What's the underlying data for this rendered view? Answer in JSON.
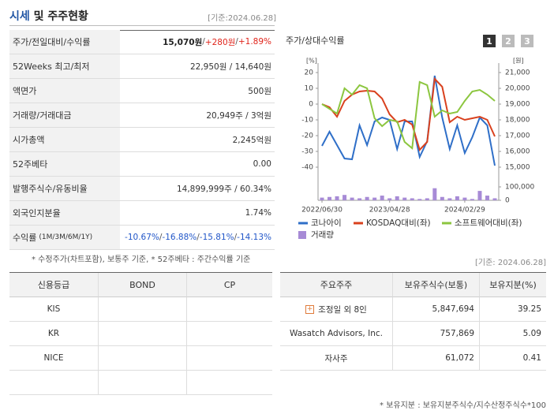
{
  "header": {
    "title_main": "시세",
    "title_rest": "및 주주현황",
    "date": "[기준:2024.06.28]"
  },
  "summary": {
    "rows": [
      {
        "label": "주가/전일대비/수익률",
        "value": [
          "15,070원",
          " / ",
          "+280원",
          " / ",
          "+1.89%"
        ]
      },
      {
        "label": "52Weeks 최고/최저",
        "value": [
          "22,950원 / 14,640원"
        ]
      },
      {
        "label": "액면가",
        "value": [
          "500원"
        ]
      },
      {
        "label": "거래량/거래대금",
        "value": [
          "20,949주 / 3억원"
        ]
      },
      {
        "label": "시가총액",
        "value": [
          "2,245억원"
        ]
      },
      {
        "label": "52주베타",
        "value": [
          "0.00"
        ]
      },
      {
        "label": "발행주식수/유동비율",
        "value": [
          "14,899,999주 / 60.34%"
        ]
      },
      {
        "label": "외국인지분율",
        "value": [
          "1.74%"
        ]
      },
      {
        "label": "수익률",
        "sublabel": "(1M/3M/6M/1Y)",
        "value": [
          "-10.67%",
          " / ",
          "-16.88%",
          " / ",
          "-15.81%",
          " / ",
          "-14.13%"
        ]
      }
    ]
  },
  "note": "* 수정주가(차트포함), 보통주 기준, * 52주베타 : 주간수익률 기준",
  "chart_data": {
    "type": "line",
    "title": "주가/상대수익률",
    "buttons": [
      "1",
      "2",
      "3"
    ],
    "y_unit": "[%]",
    "y2_unit": "[원]",
    "categories": [
      "2022/06/30",
      null,
      null,
      null,
      null,
      null,
      null,
      null,
      null,
      "2023/04/28",
      null,
      null,
      null,
      null,
      null,
      null,
      null,
      null,
      null,
      "2024/02/29",
      null,
      null,
      null,
      null
    ],
    "ylim": [
      -40,
      20
    ],
    "yticks": [
      20,
      10,
      0,
      -10,
      -20,
      -30,
      -40
    ],
    "y2lim": [
      15000,
      21000
    ],
    "y2ticks": [
      {
        "value": 21000,
        "label": "21,000"
      },
      {
        "value": 20000,
        "label": "20,000"
      },
      {
        "value": 19000,
        "label": "19,000"
      },
      {
        "value": 18000,
        "label": "18,000"
      },
      {
        "value": 17000,
        "label": "17,000"
      },
      {
        "value": 16000,
        "label": "16,000"
      },
      {
        "value": 15000,
        "label": "15,000"
      }
    ],
    "series": [
      {
        "name": "코나아이",
        "color": "#2f6fc8",
        "axis": "y2",
        "values": [
          16350,
          17250,
          16400,
          15550,
          15500,
          17650,
          16400,
          17900,
          18150,
          18000,
          16150,
          17900,
          17900,
          15650,
          16650,
          20800,
          18150,
          16150,
          17650,
          15900,
          16900,
          18150,
          17650,
          15100
        ]
      },
      {
        "name": "KOSDAQ대비(좌)",
        "color": "#d9411e",
        "values": [
          0,
          -2,
          -8,
          2,
          6,
          8,
          8.5,
          8,
          3.5,
          -6.5,
          -11.5,
          -10,
          -13,
          -29,
          -24,
          16,
          11,
          -11.5,
          -8,
          -10,
          -9,
          -8,
          -10,
          -20.5
        ]
      },
      {
        "name": "소프트웨어대비(좌)",
        "color": "#8cc63f",
        "values": [
          0,
          -3,
          -6,
          10,
          6,
          12,
          10,
          -9,
          -14,
          -10,
          -11,
          -24,
          -28,
          14,
          12,
          -8,
          -4,
          -6,
          -5,
          2,
          8,
          9,
          6,
          2
        ]
      }
    ],
    "volume": {
      "name": "거래량",
      "color": "#a78bd6",
      "lim": [
        0,
        100000
      ],
      "ticks": [
        {
          "value": 100000,
          "label": "100,000"
        },
        0
      ],
      "values": [
        20000,
        25000,
        30000,
        40000,
        20000,
        15000,
        25000,
        20000,
        35000,
        15000,
        30000,
        20000,
        15000,
        10000,
        15000,
        90000,
        25000,
        15000,
        30000,
        20000,
        10000,
        70000,
        35000,
        15000
      ]
    }
  },
  "date2": "[기준: 2024.06.28]",
  "credit": {
    "headers": [
      "신용등급",
      "BOND",
      "CP"
    ],
    "rows": [
      [
        "KIS"
      ],
      [
        "KR"
      ],
      [
        "NICE"
      ]
    ]
  },
  "holders": {
    "headers": [
      "주요주주",
      "보유주식수(보통)",
      "보유지분(%)"
    ],
    "rows": [
      [
        "조정일 외 8인",
        "5,847,694",
        "39.25"
      ],
      [
        "Wasatch Advisors, Inc.",
        "757,869",
        "5.09"
      ],
      [
        "자사주",
        "61,072",
        "0.41"
      ]
    ]
  },
  "holders_note": "* 보유지분 : 보유지분주식수/지수산정주식수*100"
}
